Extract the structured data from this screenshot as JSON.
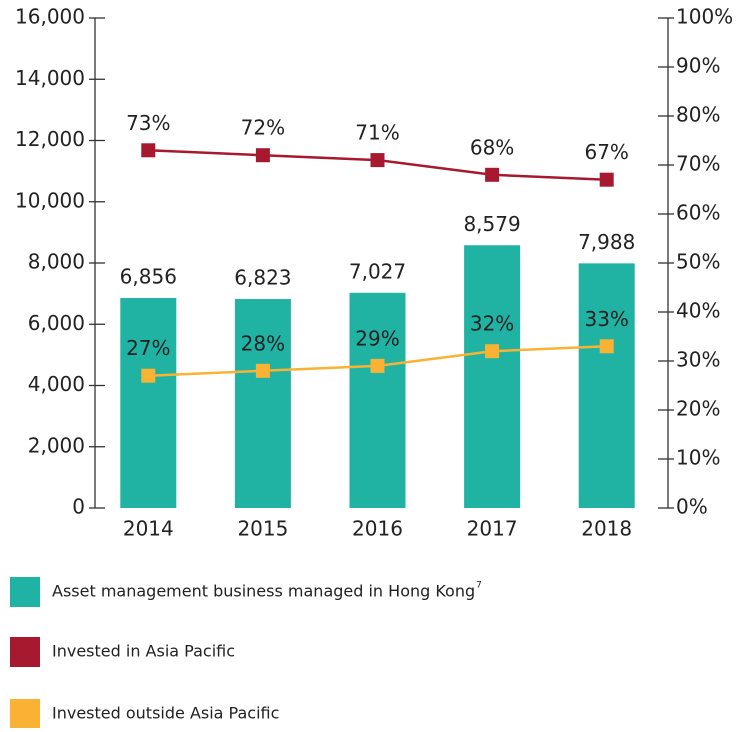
{
  "chart_data": {
    "type": "bar_line",
    "categories": [
      "2014",
      "2015",
      "2016",
      "2017",
      "2018"
    ],
    "series": [
      {
        "name": "Asset management business managed in Hong Kong",
        "name_note": "7",
        "type": "bar",
        "color": "#20b2a2",
        "axis": "y",
        "values": [
          6856,
          6823,
          7027,
          8579,
          7988
        ],
        "value_labels": [
          "6,856",
          "6,823",
          "7,027",
          "8,579",
          "7,988"
        ]
      },
      {
        "name": "Invested in Asia Pacific",
        "type": "line",
        "color": "#a6192e",
        "axis": "y2",
        "values": [
          73,
          72,
          71,
          68,
          67
        ],
        "value_labels": [
          "73%",
          "72%",
          "71%",
          "68%",
          "67%"
        ]
      },
      {
        "name": "Invested outside Asia Pacific",
        "type": "line",
        "color": "#f9b233",
        "axis": "y2",
        "values": [
          27,
          28,
          29,
          32,
          33
        ],
        "value_labels": [
          "27%",
          "28%",
          "29%",
          "32%",
          "33%"
        ]
      }
    ],
    "ylim": [
      0,
      16000
    ],
    "yticks": [
      0,
      {
        "value": 2000,
        "label": "2,000"
      },
      {
        "value": 4000,
        "label": "4,000"
      },
      {
        "value": 6000,
        "label": "6,000"
      },
      {
        "value": 8000,
        "label": "8,000"
      },
      {
        "value": 10000,
        "label": "10,000"
      },
      {
        "value": 12000,
        "label": "12,000"
      },
      {
        "value": 14000,
        "label": "14,000"
      },
      {
        "value": 16000,
        "label": "16,000"
      }
    ],
    "y2lim": [
      0,
      100
    ],
    "y2ticks": [
      {
        "value": 0,
        "label": "0%"
      },
      {
        "value": 10,
        "label": "10%"
      },
      {
        "value": 20,
        "label": "20%"
      },
      {
        "value": 30,
        "label": "30%"
      },
      {
        "value": 40,
        "label": "40%"
      },
      {
        "value": 50,
        "label": "50%"
      },
      {
        "value": 60,
        "label": "60%"
      },
      {
        "value": 70,
        "label": "70%"
      },
      {
        "value": 80,
        "label": "80%"
      },
      {
        "value": 90,
        "label": "90%"
      },
      {
        "value": 100,
        "label": "100%"
      }
    ]
  }
}
